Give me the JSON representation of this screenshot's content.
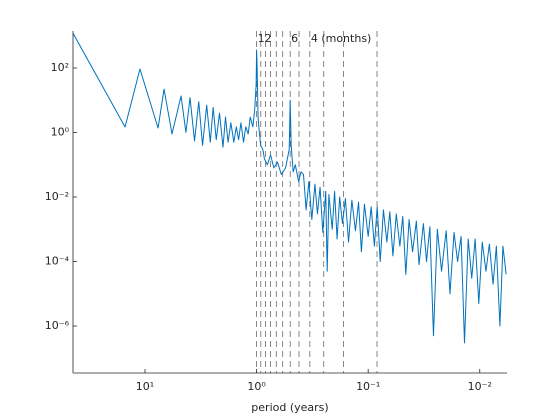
{
  "chart_data": {
    "type": "line",
    "x_label": "period (years)",
    "x": [
      44.2,
      15.1,
      11.1,
      7.64,
      6.75,
      5.73,
      4.75,
      4.3,
      3.95,
      3.6,
      3.3,
      3.05,
      2.8,
      2.6,
      2.45,
      2.3,
      2.15,
      2.0,
      1.9,
      1.8,
      1.7,
      1.6,
      1.52,
      1.45,
      1.38,
      1.31,
      1.25,
      1.19,
      1.14,
      1.08,
      1.04,
      1.01,
      1.0,
      0.99,
      0.97,
      0.95,
      0.92,
      0.88,
      0.85,
      0.8,
      0.75,
      0.7,
      0.65,
      0.6,
      0.55,
      0.51,
      0.5,
      0.49,
      0.47,
      0.45,
      0.42,
      0.4,
      0.38,
      0.36,
      0.34,
      0.32,
      0.3,
      0.285,
      0.27,
      0.255,
      0.24,
      0.233,
      0.225,
      0.21,
      0.2,
      0.19,
      0.18,
      0.17,
      0.16,
      0.15,
      0.14,
      0.13,
      0.122,
      0.115,
      0.108,
      0.1,
      0.094,
      0.088,
      0.083,
      0.078,
      0.073,
      0.068,
      0.064,
      0.06,
      0.056,
      0.052,
      0.049,
      0.046,
      0.043,
      0.04,
      0.037,
      0.035,
      0.032,
      0.03,
      0.028,
      0.026,
      0.024,
      0.022,
      0.02,
      0.0185,
      0.017,
      0.0158,
      0.0147,
      0.0137,
      0.0127,
      0.0118,
      0.011,
      0.0102,
      0.0095,
      0.0088,
      0.0082,
      0.0076,
      0.0071,
      0.0066,
      0.0062,
      0.0058
    ],
    "series": [
      {
        "color": "#0072bd",
        "values": [
          1200,
          1.48,
          93,
          1.38,
          22,
          0.9,
          13.5,
          1.0,
          12,
          0.55,
          9,
          0.4,
          7,
          0.5,
          6,
          0.6,
          4,
          0.35,
          3,
          0.5,
          2,
          0.5,
          1.5,
          0.6,
          2,
          0.5,
          1.5,
          0.9,
          3,
          1.5,
          5,
          30,
          360,
          120,
          3,
          1.2,
          0.4,
          0.3,
          0.15,
          0.1,
          0.2,
          0.08,
          0.12,
          0.05,
          0.08,
          0.3,
          10,
          0.4,
          0.06,
          0.1,
          0.03,
          0.06,
          0.05,
          0.004,
          0.03,
          0.002,
          0.025,
          0.003,
          0.02,
          0.0008,
          0.015,
          5e-05,
          0.012,
          0.001,
          0.015,
          0.0005,
          0.01,
          0.0015,
          0.009,
          0.0004,
          0.008,
          0.0009,
          0.007,
          0.0002,
          0.006,
          0.0006,
          0.005,
          0.0003,
          0.005,
          0.0001,
          0.004,
          0.0004,
          0.0035,
          0.00015,
          0.003,
          0.0003,
          0.0025,
          4e-05,
          0.002,
          0.0002,
          0.0018,
          8e-05,
          0.0015,
          0.0001,
          0.0012,
          5e-07,
          0.001,
          5e-05,
          0.0009,
          1e-05,
          0.0008,
          0.0001,
          0.0006,
          3e-07,
          0.0005,
          3e-05,
          0.0005,
          5e-06,
          0.0004,
          5e-05,
          0.00035,
          2e-05,
          0.0003,
          1e-06,
          0.0003,
          4e-05
        ]
      }
    ],
    "xlim": [
      44.2,
      0.0057
    ],
    "ylim": [
      3.5e-08,
      1400
    ],
    "x_scale": "log",
    "y_scale": "log",
    "x_reversed": true,
    "xticks": [
      {
        "value": 10,
        "label": "10¹"
      },
      {
        "value": 1,
        "label": "10⁰"
      },
      {
        "value": 0.1,
        "label": "10⁻¹"
      },
      {
        "value": 0.01,
        "label": "10⁻²"
      }
    ],
    "yticks": [
      {
        "value": 1e-06,
        "label": "10⁻⁶"
      },
      {
        "value": 0.0001,
        "label": "10⁻⁴"
      },
      {
        "value": 0.01,
        "label": "10⁻²"
      },
      {
        "value": 1,
        "label": "10⁰"
      },
      {
        "value": 100,
        "label": "10²"
      }
    ],
    "reference_periods": [
      1,
      0.91667,
      0.83333,
      0.75,
      0.66667,
      0.58333,
      0.5,
      0.41667,
      0.33333,
      0.25,
      0.16667,
      0.08333
    ],
    "annotations": [
      {
        "text": "12",
        "x": 1
      },
      {
        "text": "6",
        "x": 0.5
      },
      {
        "text": "4 (months)",
        "x": 0.33333
      }
    ]
  }
}
